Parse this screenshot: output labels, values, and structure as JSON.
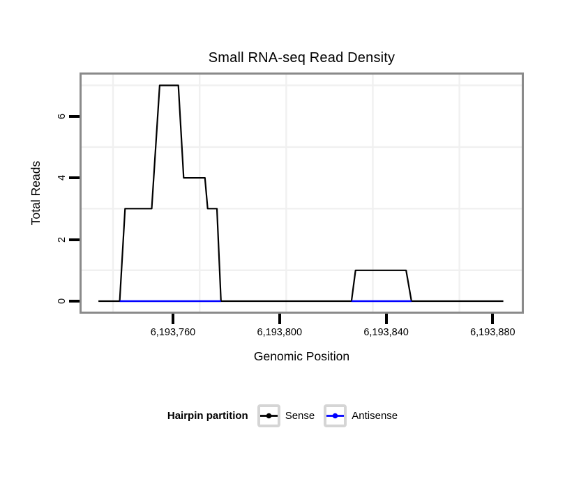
{
  "chart_data": {
    "type": "line",
    "title": "Small RNA-seq Read Density",
    "xlabel": "Genomic Position",
    "ylabel": "Total Reads",
    "x_domain": [
      6193725.7,
      6193890.9
    ],
    "y_domain": [
      -0.34,
      7.35
    ],
    "x_ticks": [
      {
        "value": 6193760,
        "label": "6,193,760"
      },
      {
        "value": 6193800,
        "label": "6,193,800"
      },
      {
        "value": 6193840,
        "label": "6,193,840"
      },
      {
        "value": 6193880,
        "label": "6,193,880"
      }
    ],
    "y_ticks": [
      {
        "value": 0,
        "label": "0"
      },
      {
        "value": 2,
        "label": "2"
      },
      {
        "value": 4,
        "label": "4"
      },
      {
        "value": 6,
        "label": "6"
      }
    ],
    "grid_x": [
      6193737.5,
      6193770,
      6193802.5,
      6193835,
      6193867.5
    ],
    "grid_y": [
      1,
      3,
      5,
      7
    ],
    "grid_on": true,
    "legend_position": "bottom",
    "series": [
      {
        "name": "Sense",
        "color": "#000000",
        "width": 2.2,
        "segments": [
          [
            [
              6193732,
              0
            ],
            [
              6193740,
              0
            ],
            [
              6193742,
              3
            ],
            [
              6193752,
              3
            ],
            [
              6193755,
              7
            ],
            [
              6193762,
              7
            ],
            [
              6193764,
              4
            ],
            [
              6193772,
              4
            ],
            [
              6193773,
              3
            ],
            [
              6193776.5,
              3
            ],
            [
              6193778,
              0
            ],
            [
              6193827,
              0
            ],
            [
              6193828.5,
              1
            ],
            [
              6193847.5,
              1
            ],
            [
              6193849.5,
              0
            ],
            [
              6193884,
              0
            ]
          ]
        ]
      },
      {
        "name": "Antisense",
        "color": "#0000FF",
        "width": 2.6,
        "segments": [
          [
            [
              6193740,
              0
            ],
            [
              6193778,
              0
            ]
          ],
          [
            [
              6193827,
              0
            ],
            [
              6193849.5,
              0
            ]
          ]
        ]
      }
    ],
    "colors": {
      "grid": "#f0f0f0",
      "panel_border": "#8a8a8a",
      "tick": "#000000",
      "background": "#ffffff"
    }
  },
  "legend": {
    "title": "Hairpin partition",
    "entries": [
      {
        "label": "Sense",
        "color": "#000000"
      },
      {
        "label": "Antisense",
        "color": "#0000FF"
      }
    ]
  }
}
